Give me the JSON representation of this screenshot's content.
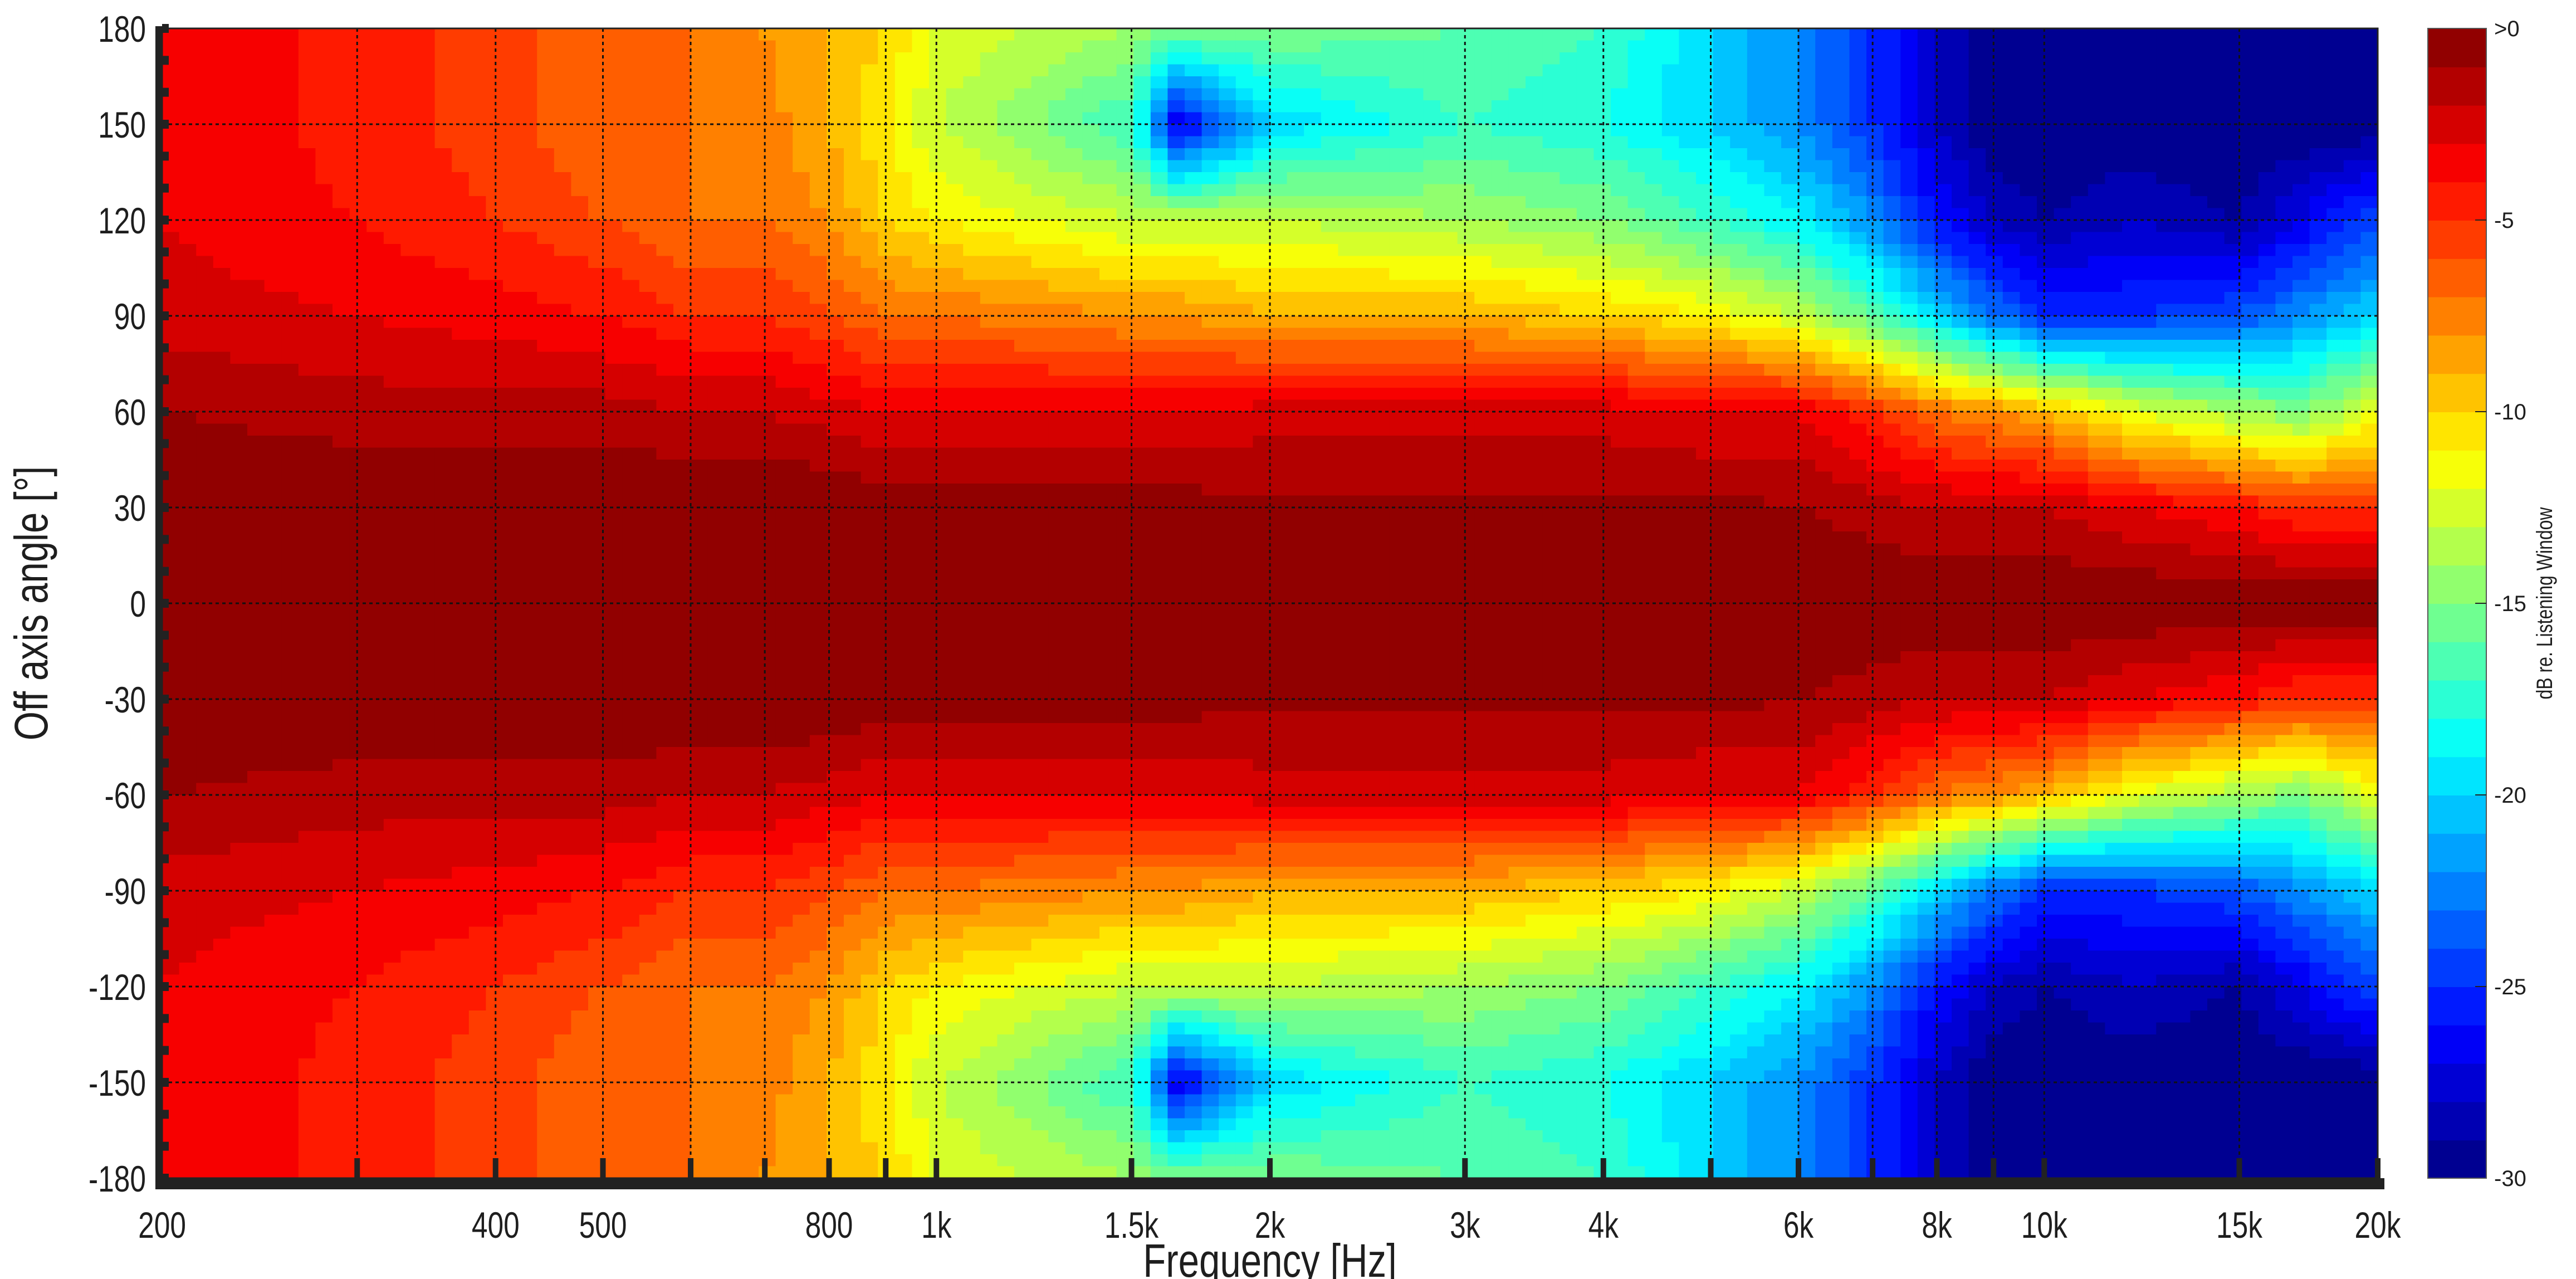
{
  "chart_data": {
    "type": "heatmap",
    "title": "",
    "xlabel": "Frequency [Hz]",
    "ylabel": "Off axis angle [°]",
    "xscale": "log",
    "xlim": [
      200,
      20000
    ],
    "ylim": [
      -180,
      180
    ],
    "grid": true,
    "x_gridlines": [
      300,
      400,
      500,
      600,
      700,
      800,
      900,
      1000,
      1500,
      2000,
      3000,
      4000,
      5000,
      6000,
      7000,
      8000,
      9000,
      10000,
      15000,
      20000
    ],
    "x_ticks": [
      {
        "value": 200,
        "label": "200"
      },
      {
        "value": 400,
        "label": "400"
      },
      {
        "value": 500,
        "label": "500"
      },
      {
        "value": 800,
        "label": "800"
      },
      {
        "value": 1000,
        "label": "1k"
      },
      {
        "value": 1500,
        "label": "1.5k"
      },
      {
        "value": 2000,
        "label": "2k"
      },
      {
        "value": 3000,
        "label": "3k"
      },
      {
        "value": 4000,
        "label": "4k"
      },
      {
        "value": 6000,
        "label": "6k"
      },
      {
        "value": 8000,
        "label": "8k"
      },
      {
        "value": 10000,
        "label": "10k"
      },
      {
        "value": 15000,
        "label": "15k"
      },
      {
        "value": 20000,
        "label": "20k"
      }
    ],
    "y_ticks": [
      {
        "value": 180,
        "label": "180"
      },
      {
        "value": 150,
        "label": "150"
      },
      {
        "value": 120,
        "label": "120"
      },
      {
        "value": 90,
        "label": "90"
      },
      {
        "value": 60,
        "label": "60"
      },
      {
        "value": 30,
        "label": "30"
      },
      {
        "value": 0,
        "label": "0"
      },
      {
        "value": -30,
        "label": "-30"
      },
      {
        "value": -60,
        "label": "-60"
      },
      {
        "value": -90,
        "label": "-90"
      },
      {
        "value": -120,
        "label": "-120"
      },
      {
        "value": -150,
        "label": "-150"
      },
      {
        "value": -180,
        "label": "-180"
      }
    ],
    "colorbar": {
      "label": "dB re. Listening Window",
      "range": [
        -30,
        0
      ],
      "levels": 30,
      "colormap": "jet",
      "ticks": [
        {
          "value": 0,
          "label": ">0"
        },
        {
          "value": -5,
          "label": "-5"
        },
        {
          "value": -10,
          "label": "-10"
        },
        {
          "value": -15,
          "label": "-15"
        },
        {
          "value": -20,
          "label": "-20"
        },
        {
          "value": -25,
          "label": "-25"
        },
        {
          "value": -30,
          "label": "-30"
        }
      ]
    },
    "frequencies": [
      200,
      300,
      400,
      500,
      600,
      700,
      800,
      900,
      1000,
      1500,
      1650,
      2000,
      3000,
      4000,
      5000,
      6000,
      7000,
      8000,
      9000,
      10000,
      12000,
      15000,
      17000,
      20000
    ],
    "angles": [
      -180,
      -150,
      -120,
      -90,
      -60,
      -30,
      0,
      30,
      60,
      90,
      120,
      150,
      180
    ],
    "values_db": [
      [
        -3,
        -4.5,
        -5.5,
        -7,
        -7,
        -8,
        -9,
        -10,
        -12,
        -14,
        -15,
        -15,
        -16,
        -17,
        -20,
        -22,
        -25,
        -28,
        -30,
        -30,
        -30,
        -30,
        -30,
        -30
      ],
      [
        -3,
        -4.5,
        -5.5,
        -7,
        -7,
        -7.5,
        -9,
        -11,
        -13,
        -17,
        -27,
        -20,
        -17,
        -18,
        -20,
        -22,
        -25,
        -28,
        -30,
        -30,
        -30,
        -30,
        -30,
        -30
      ],
      [
        -3,
        -4,
        -5,
        -6,
        -7,
        -7,
        -8,
        -10,
        -11,
        -13,
        -13,
        -13,
        -14,
        -15,
        -17,
        -19,
        -22,
        -26,
        -28,
        -29,
        -28,
        -29,
        -27,
        -24
      ],
      [
        -2.5,
        -3,
        -3.5,
        -4,
        -5,
        -5,
        -6,
        -7,
        -7,
        -8,
        -8,
        -9,
        -9,
        -10,
        -11,
        -13,
        -16,
        -20,
        -23,
        -25,
        -25,
        -24,
        -22,
        -20
      ],
      [
        -1,
        -1.5,
        -1.5,
        -1.5,
        -2,
        -2,
        -2.5,
        -3,
        -3,
        -3,
        -3,
        -2.5,
        -2.5,
        -2.5,
        -3,
        -3,
        -5,
        -7,
        -8,
        -9,
        -12,
        -14,
        -15,
        -12
      ],
      [
        0,
        0,
        0,
        0,
        0,
        0,
        0,
        -0.5,
        -0.5,
        -0.5,
        -0.5,
        -0.8,
        -0.8,
        -0.8,
        -0.8,
        -0.9,
        -1.5,
        -2,
        -2,
        -2,
        -3,
        -4,
        -5,
        -5
      ],
      [
        0,
        0,
        0,
        0,
        0,
        0,
        0,
        0,
        0,
        0,
        0,
        0,
        0,
        0,
        0,
        0,
        0,
        0,
        0,
        0,
        0,
        0,
        0,
        0
      ],
      [
        0,
        0,
        0,
        0,
        0,
        0,
        0,
        -0.5,
        -0.5,
        -0.5,
        -0.5,
        -0.8,
        -0.8,
        -0.8,
        -0.8,
        -0.9,
        -1.5,
        -2,
        -2,
        -2,
        -3,
        -4,
        -5,
        -5
      ],
      [
        -1,
        -1.5,
        -1.5,
        -1.5,
        -2,
        -2,
        -2.5,
        -3,
        -3,
        -3,
        -3,
        -2.5,
        -2.5,
        -2.5,
        -3,
        -3,
        -5,
        -7,
        -8,
        -9,
        -12,
        -14,
        -15,
        -12
      ],
      [
        -2.5,
        -3,
        -3.5,
        -4,
        -5,
        -5,
        -6,
        -7,
        -7,
        -8,
        -8,
        -9,
        -9,
        -10,
        -11,
        -13,
        -16,
        -20,
        -23,
        -25,
        -25,
        -24,
        -22,
        -20
      ],
      [
        -3,
        -4,
        -5,
        -6,
        -7,
        -7,
        -8,
        -10,
        -11,
        -13,
        -13,
        -13,
        -14,
        -15,
        -17,
        -19,
        -22,
        -26,
        -28,
        -29,
        -28,
        -29,
        -27,
        -24
      ],
      [
        -3,
        -4.5,
        -5.5,
        -7,
        -7,
        -7.5,
        -9,
        -11,
        -13,
        -17,
        -27,
        -20,
        -17,
        -18,
        -20,
        -22,
        -25,
        -28,
        -30,
        -30,
        -30,
        -30,
        -30,
        -30
      ],
      [
        -3,
        -4.5,
        -5.5,
        -7,
        -7,
        -8,
        -9,
        -10,
        -12,
        -14,
        -15,
        -15,
        -16,
        -17,
        -20,
        -22,
        -25,
        -28,
        -30,
        -30,
        -30,
        -30,
        -30,
        -30
      ]
    ]
  }
}
